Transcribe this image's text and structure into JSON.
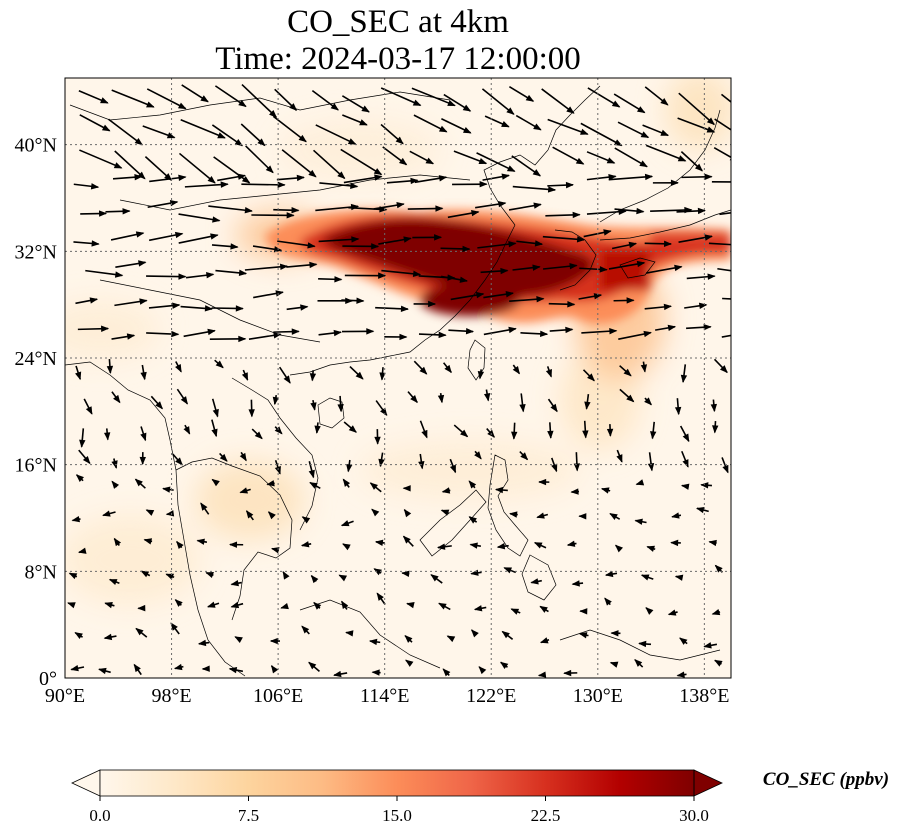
{
  "title": {
    "line1": "CO_SEC at 4km",
    "line2": "Time: 2024-03-17 12:00:00"
  },
  "map": {
    "lon_range": [
      90,
      140
    ],
    "lat_range": [
      0,
      45
    ],
    "gridlines": "dotted",
    "x_ticks": [
      {
        "value": 90,
        "label": "90°E"
      },
      {
        "value": 98,
        "label": "98°E"
      },
      {
        "value": 106,
        "label": "106°E"
      },
      {
        "value": 114,
        "label": "114°E"
      },
      {
        "value": 122,
        "label": "122°E"
      },
      {
        "value": 130,
        "label": "130°E"
      },
      {
        "value": 138,
        "label": "138°E"
      }
    ],
    "y_ticks": [
      {
        "value": 0,
        "label": "0°"
      },
      {
        "value": 8,
        "label": "8°N"
      },
      {
        "value": 16,
        "label": "16°N"
      },
      {
        "value": 24,
        "label": "24°N"
      },
      {
        "value": 32,
        "label": "32°N"
      },
      {
        "value": 40,
        "label": "40°N"
      }
    ],
    "high_concentration_areas": [
      {
        "lon": 118,
        "lat": 33.5,
        "value": 30
      },
      {
        "lon": 114,
        "lat": 33,
        "value": 30
      },
      {
        "lon": 125,
        "lat": 31,
        "value": 28
      },
      {
        "lon": 130,
        "lat": 31.5,
        "value": 24
      },
      {
        "lon": 131,
        "lat": 28,
        "value": 18
      },
      {
        "lon": 107,
        "lat": 32.5,
        "value": 10
      },
      {
        "lon": 104,
        "lat": 14,
        "value": 4
      }
    ]
  },
  "colorbar": {
    "label": "CO_SEC (ppbv)",
    "min": 0.0,
    "max": 30.0,
    "extend": "both",
    "colormap": [
      "#fff7ec",
      "#fee8c8",
      "#fdd49e",
      "#fdbb84",
      "#fc8d59",
      "#ef6548",
      "#d7301f",
      "#b30000",
      "#7f0000"
    ],
    "ticks": [
      "0.0",
      "7.5",
      "15.0",
      "22.5",
      "30.0"
    ]
  },
  "colors": {
    "ocean_background": "#fff6ea",
    "gridline": "#6b6b6b",
    "arrow": "#000000",
    "coastline": "#000000"
  }
}
